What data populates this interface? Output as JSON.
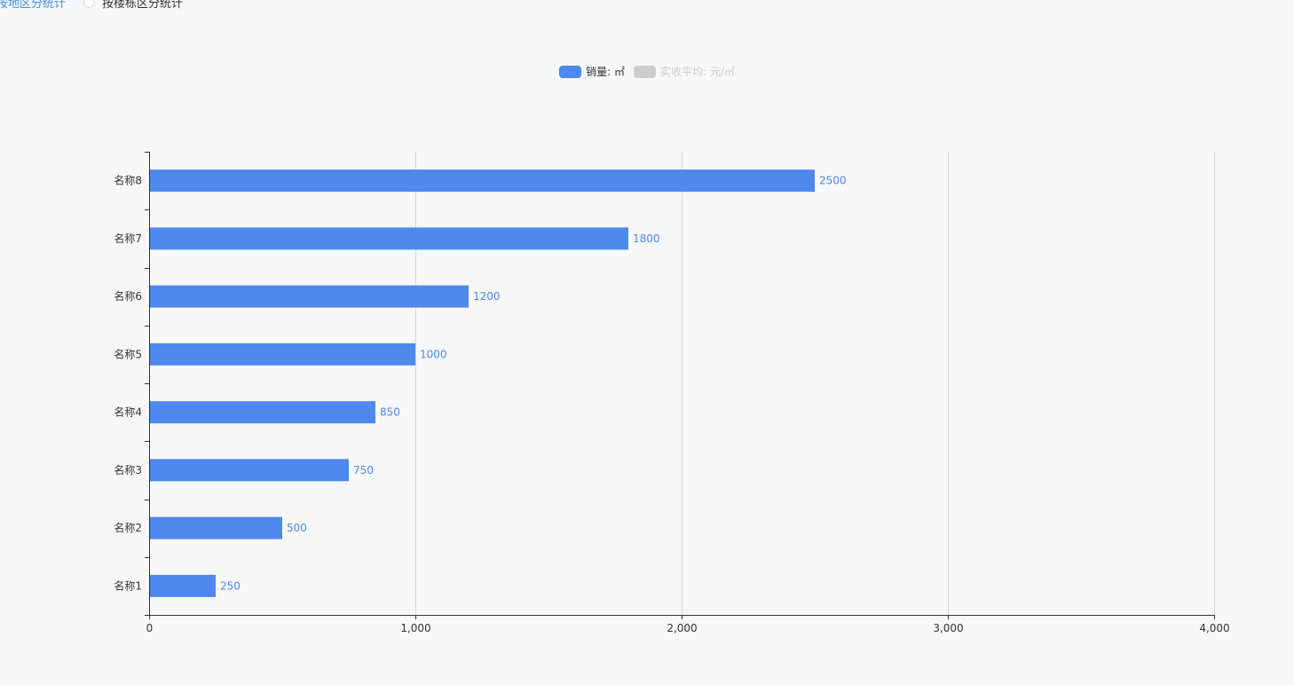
{
  "controls": {
    "options": [
      {
        "label": "按地区分统计",
        "selected": true
      },
      {
        "label": "按楼栋区分统计",
        "selected": false
      }
    ]
  },
  "legend": [
    {
      "label": "销量: ㎡",
      "color": "#4f88ec",
      "active": true
    },
    {
      "label": "实收平均: 元/㎡",
      "color": "#cccccc",
      "active": false
    }
  ],
  "chart_data": {
    "type": "bar",
    "orientation": "horizontal",
    "categories": [
      "名称1",
      "名称2",
      "名称3",
      "名称4",
      "名称5",
      "名称6",
      "名称7",
      "名称8"
    ],
    "series": [
      {
        "name": "销量: ㎡",
        "values": [
          250,
          500,
          750,
          850,
          1000,
          1200,
          1800,
          2500
        ],
        "color": "#4f88ec"
      }
    ],
    "xlim": [
      0,
      4000
    ],
    "xticks": [
      0,
      1000,
      2000,
      3000,
      4000
    ],
    "xtick_labels": [
      "0",
      "1,000",
      "2,000",
      "3,000",
      "4,000"
    ],
    "data_labels": true,
    "grid": "vertical",
    "legend_position": "top-center"
  }
}
